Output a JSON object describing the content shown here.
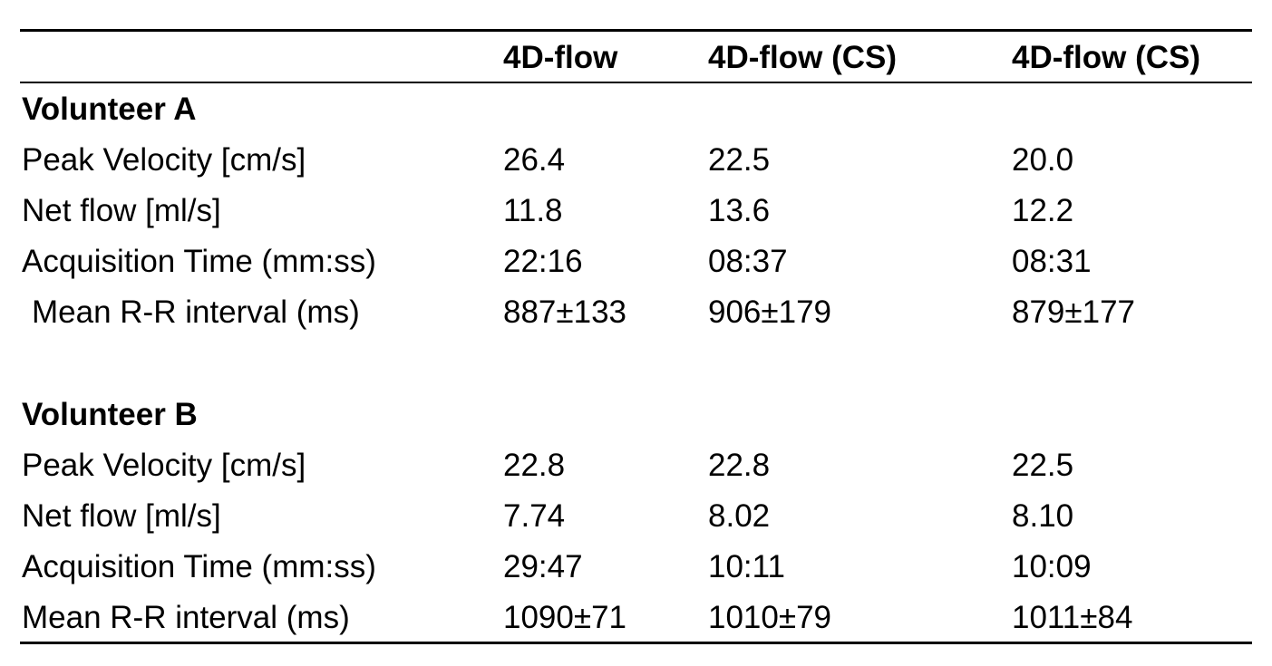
{
  "header": {
    "columns": [
      "",
      "4D-flow",
      "4D-flow (CS)",
      "4D-flow (CS)"
    ]
  },
  "groups": [
    {
      "title": "Volunteer A",
      "rows": [
        {
          "label": "Peak Velocity [cm/s]",
          "values": [
            "26.4",
            "22.5",
            "20.0"
          ]
        },
        {
          "label": "Net flow [ml/s]",
          "values": [
            "11.8",
            "13.6",
            "12.2"
          ]
        },
        {
          "label": "Acquisition Time (mm:ss)",
          "values": [
            "22:16",
            "08:37",
            "08:31"
          ]
        },
        {
          "label": "Mean R-R interval (ms)",
          "values": [
            "887±133",
            "906±179",
            "879±177"
          ]
        }
      ]
    },
    {
      "title": "Volunteer B",
      "rows": [
        {
          "label": "Peak Velocity [cm/s]",
          "values": [
            "22.8",
            "22.8",
            "22.5"
          ]
        },
        {
          "label": "Net flow [ml/s]",
          "values": [
            "7.74",
            "8.02",
            "8.10"
          ]
        },
        {
          "label": "Acquisition Time (mm:ss)",
          "values": [
            "29:47",
            "10:11",
            "10:09"
          ]
        },
        {
          "label": "Mean R-R interval (ms)",
          "values": [
            "1090±71",
            "1010±79",
            "1011±84"
          ]
        }
      ]
    }
  ]
}
